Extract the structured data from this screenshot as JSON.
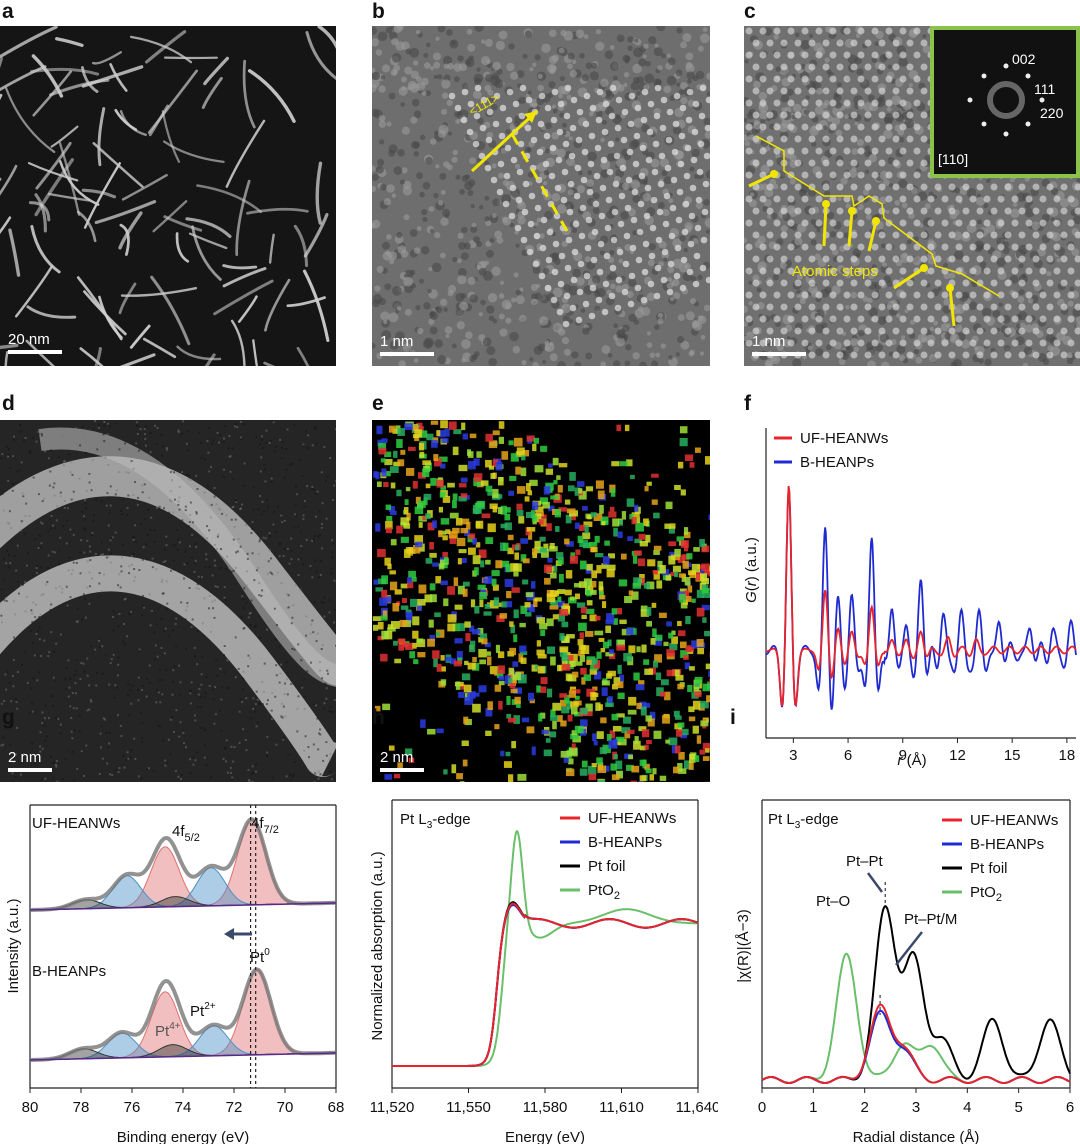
{
  "panels": {
    "a": {
      "label": "a",
      "scalebar": "20 nm"
    },
    "b": {
      "label": "b",
      "scalebar": "1 nm",
      "direction": "<111>"
    },
    "c": {
      "label": "c",
      "scalebar": "1 nm",
      "fft_labels": [
        "002",
        "111",
        "220",
        "[110]"
      ],
      "annotation": "Atomic steps"
    },
    "d": {
      "label": "d",
      "scalebar": "2 nm"
    },
    "e": {
      "label": "e",
      "scalebar": "2 nm"
    },
    "f": {
      "label": "f"
    },
    "g": {
      "label": "g"
    },
    "h": {
      "label": "h"
    },
    "i": {
      "label": "i"
    }
  },
  "colors": {
    "uf": "#e8242b",
    "b": "#1f2bd1",
    "ptfoil": "#000000",
    "pto2": "#6abf6a",
    "green_frame": "#8bc34a",
    "yellow": "#f2e600"
  },
  "chart_data": [
    {
      "type": "line",
      "panel": "f",
      "xlabel": "r (Å)",
      "ylabel": "G(r) (a.u.)",
      "xlim": [
        1.5,
        18.5
      ],
      "xticks": [
        3,
        6,
        9,
        12,
        15,
        18
      ],
      "legend": [
        "UF-HEANWs",
        "B-HEANPs"
      ],
      "series": [
        {
          "name": "UF-HEANWs",
          "color": "#e8242b",
          "peaks": [
            [
              2.75,
              0.95
            ],
            [
              4.75,
              0.35
            ],
            [
              5.45,
              0.12
            ],
            [
              6.2,
              0.1
            ],
            [
              7.3,
              0.25
            ],
            [
              8.4,
              0.08
            ],
            [
              9.2,
              0.08
            ],
            [
              10.0,
              0.12
            ],
            [
              11.5,
              0.06
            ],
            [
              13.0,
              0.05
            ]
          ]
        },
        {
          "name": "B-HEANPs",
          "color": "#1f2bd1",
          "peaks": [
            [
              2.75,
              0.92
            ],
            [
              4.75,
              0.72
            ],
            [
              5.45,
              0.3
            ],
            [
              6.2,
              0.3
            ],
            [
              7.3,
              0.65
            ],
            [
              8.4,
              0.3
            ],
            [
              9.2,
              0.2
            ],
            [
              10.0,
              0.45
            ],
            [
              11.2,
              0.2
            ],
            [
              12.2,
              0.18
            ],
            [
              13.2,
              0.18
            ],
            [
              14.3,
              0.2
            ],
            [
              16.0,
              0.15
            ],
            [
              17.2,
              0.12
            ],
            [
              18.2,
              0.12
            ]
          ]
        }
      ]
    },
    {
      "type": "line",
      "panel": "g",
      "xlabel": "Binding energy (eV)",
      "ylabel": "Intensity (a.u.)",
      "xlim": [
        80,
        68
      ],
      "xticks": [
        80,
        78,
        76,
        74,
        72,
        70,
        68
      ],
      "annotations": [
        "UF-HEANWs",
        "B-HEANPs",
        "4f5/2",
        "4f7/2",
        "Pt0",
        "Pt2+",
        "Pt4+"
      ],
      "series": [
        {
          "name": "UF-HEANWs",
          "components": [
            {
              "center": 71.3,
              "height": 0.85,
              "color": "#e07070"
            },
            {
              "center": 74.7,
              "height": 0.6,
              "color": "#e07070"
            },
            {
              "center": 72.9,
              "height": 0.38,
              "color": "#4a90c8"
            },
            {
              "center": 76.2,
              "height": 0.32,
              "color": "#4a90c8"
            },
            {
              "center": 74.3,
              "height": 0.1,
              "color": "#333333"
            },
            {
              "center": 77.8,
              "height": 0.09,
              "color": "#333333"
            }
          ]
        },
        {
          "name": "B-HEANPs",
          "components": [
            {
              "center": 71.1,
              "height": 0.85,
              "color": "#e07070"
            },
            {
              "center": 74.7,
              "height": 0.65,
              "color": "#e07070"
            },
            {
              "center": 72.8,
              "height": 0.3,
              "color": "#4a90c8"
            },
            {
              "center": 76.4,
              "height": 0.25,
              "color": "#4a90c8"
            },
            {
              "center": 74.4,
              "height": 0.12,
              "color": "#333333"
            },
            {
              "center": 77.9,
              "height": 0.1,
              "color": "#333333"
            }
          ]
        }
      ]
    },
    {
      "type": "line",
      "panel": "h",
      "title": "Pt L3-edge",
      "xlabel": "Energy (eV)",
      "ylabel": "Normalized absorption (a.u.)",
      "xlim": [
        11520,
        11640
      ],
      "xticks": [
        11520,
        11550,
        11580,
        11610,
        11640
      ],
      "xticklabels": [
        "11,520",
        "11,550",
        "11,580",
        "11,610",
        "11,640"
      ],
      "legend": [
        "UF-HEANWs",
        "B-HEANPs",
        "Pt foil",
        "PtO2"
      ],
      "series": [
        {
          "name": "UF-HEANWs",
          "color": "#e8242b",
          "edge": 11564,
          "whiteline": 0.75
        },
        {
          "name": "B-HEANPs",
          "color": "#1f2bd1",
          "edge": 11564,
          "whiteline": 0.74
        },
        {
          "name": "Pt foil",
          "color": "#000000",
          "edge": 11564,
          "whiteline": 0.76
        },
        {
          "name": "PtO2",
          "color": "#6abf6a",
          "edge": 11566,
          "whiteline": 1.28
        }
      ]
    },
    {
      "type": "line",
      "panel": "i",
      "title": "Pt L3-edge",
      "xlabel": "Radial distance (Å)",
      "ylabel": "|χ(R)|(Å−3)",
      "xlim": [
        0,
        6
      ],
      "xticks": [
        0,
        1,
        2,
        3,
        4,
        5,
        6
      ],
      "legend": [
        "UF-HEANWs",
        "B-HEANPs",
        "Pt foil",
        "PtO2"
      ],
      "annotations": [
        "Pt–O",
        "Pt–Pt",
        "Pt–Pt/M"
      ],
      "series": [
        {
          "name": "UF-HEANWs",
          "color": "#e8242b",
          "peaks": [
            [
              2.3,
              0.35
            ],
            [
              2.75,
              0.15
            ]
          ]
        },
        {
          "name": "B-HEANPs",
          "color": "#1f2bd1",
          "peaks": [
            [
              2.3,
              0.32
            ],
            [
              2.75,
              0.14
            ]
          ]
        },
        {
          "name": "Pt foil",
          "color": "#000000",
          "peaks": [
            [
              2.4,
              0.85
            ],
            [
              2.95,
              0.6
            ],
            [
              3.5,
              0.2
            ],
            [
              4.5,
              0.3
            ],
            [
              5.6,
              0.3
            ]
          ]
        },
        {
          "name": "PtO2",
          "color": "#6abf6a",
          "peaks": [
            [
              1.65,
              0.62
            ],
            [
              2.75,
              0.18
            ],
            [
              3.3,
              0.18
            ]
          ]
        }
      ]
    }
  ],
  "text": {
    "f": {
      "legend1": "UF-HEANWs",
      "legend2": "B-HEANPs",
      "ylabel": "G(r) (a.u.)",
      "xlabel": "r (Å)"
    },
    "g": {
      "name1": "UF-HEANWs",
      "name2": "B-HEANPs",
      "xlabel": "Binding energy (eV)",
      "ylabel": "Intensity (a.u.)"
    },
    "h": {
      "title": "Pt L",
      "title_sub": "3",
      "title_rest": "-edge",
      "xlabel": "Energy (eV)",
      "ylabel": "Normalized absorption (a.u.)",
      "legend": [
        "UF-HEANWs",
        "B-HEANPs",
        "Pt foil",
        "PtO"
      ]
    },
    "i": {
      "title": "Pt L",
      "title_sub": "3",
      "title_rest": "-edge",
      "xlabel": "Radial distance (Å)",
      "legend": [
        "UF-HEANWs",
        "B-HEANPs",
        "Pt foil",
        "PtO"
      ],
      "ptO": "Pt–O",
      "ptPt": "Pt–Pt",
      "ptPtM": "Pt–Pt/M"
    }
  }
}
